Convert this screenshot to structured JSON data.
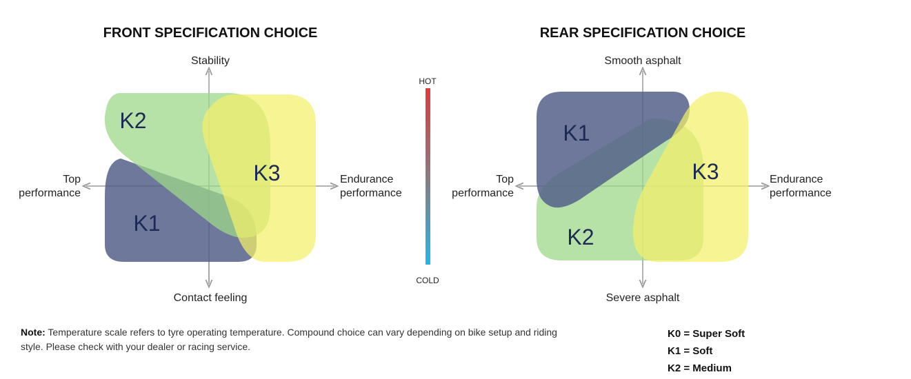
{
  "front": {
    "title": "FRONT SPECIFICATION CHOICE",
    "axis_top": "Stability",
    "axis_bottom": "Contact feeling",
    "axis_left": [
      "Top",
      "performance"
    ],
    "axis_right": [
      "Endurance",
      "performance"
    ],
    "zones": {
      "k2": "K2",
      "k1": "K1",
      "k3": "K3"
    }
  },
  "rear": {
    "title": "REAR SPECIFICATION CHOICE",
    "axis_top": "Smooth asphalt",
    "axis_bottom": "Severe asphalt",
    "axis_left": [
      "Top",
      "performance"
    ],
    "axis_right": [
      "Endurance",
      "performance"
    ],
    "zones": {
      "k1": "K1",
      "k2": "K2",
      "k3": "K3"
    }
  },
  "scale": {
    "hot": "HOT",
    "cold": "COLD"
  },
  "colors": {
    "k1": "#55608a",
    "k2": "#9ed88a",
    "k3": "#f4f06a",
    "hot": "#e03a3a",
    "cold": "#23b6e8",
    "axis": "#9a9a9a"
  },
  "note": {
    "label": "Note:",
    "text": "Temperature scale refers to tyre operating temperature. Compound choice can vary depending on bike setup and riding style. Please check with your dealer or racing service."
  },
  "legend": [
    "K0 = Super Soft",
    "K1 = Soft",
    "K2 = Medium"
  ]
}
